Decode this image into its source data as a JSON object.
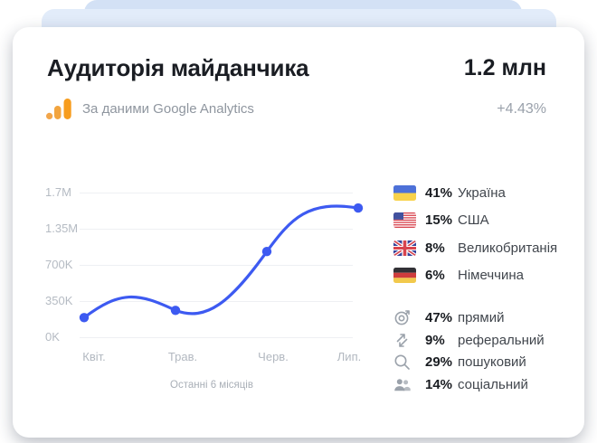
{
  "header": {
    "title": "Аудиторія майданчика",
    "total": "1.2 млн",
    "source_label": "За даними Google Analytics",
    "delta": "+4.43%"
  },
  "chart_data": {
    "type": "line",
    "title": "Аудиторія майданчика",
    "x": [
      "Квіт.",
      "Трав.",
      "Черв.",
      "Лип."
    ],
    "values": [
      190000,
      260000,
      940000,
      1550000
    ],
    "y_ticks": {
      "labels": [
        "1.7M",
        "1.35M",
        "700K",
        "350K",
        "0K"
      ],
      "values": [
        1700000,
        1350000,
        700000,
        350000,
        0
      ]
    },
    "caption": "Останні 6 місяців",
    "line_color": "#3d5af1",
    "grid": true,
    "legend": false
  },
  "audience": {
    "countries": [
      {
        "flag": "ukraine-flag",
        "pct": "41%",
        "name": "Україна"
      },
      {
        "flag": "usa-flag",
        "pct": "15%",
        "name": "США"
      },
      {
        "flag": "uk-flag",
        "pct": "8%",
        "name": "Великобританія"
      },
      {
        "flag": "germany-flag",
        "pct": "6%",
        "name": "Німеччина"
      }
    ],
    "sources": [
      {
        "icon": "target-icon",
        "pct": "47%",
        "name": "прямий"
      },
      {
        "icon": "referral-arrows-icon",
        "pct": "9%",
        "name": "реферальний"
      },
      {
        "icon": "search-icon",
        "pct": "29%",
        "name": "пошуковий"
      },
      {
        "icon": "people-icon",
        "pct": "14%",
        "name": "соціальний"
      }
    ]
  },
  "colors": {
    "accent_line": "#3d5af1",
    "ga_orange": "#f79d1e",
    "muted_text": "#9aa1ab",
    "bg_layer_front": "#e2ecfa",
    "bg_layer_back": "#d3e1f5"
  }
}
